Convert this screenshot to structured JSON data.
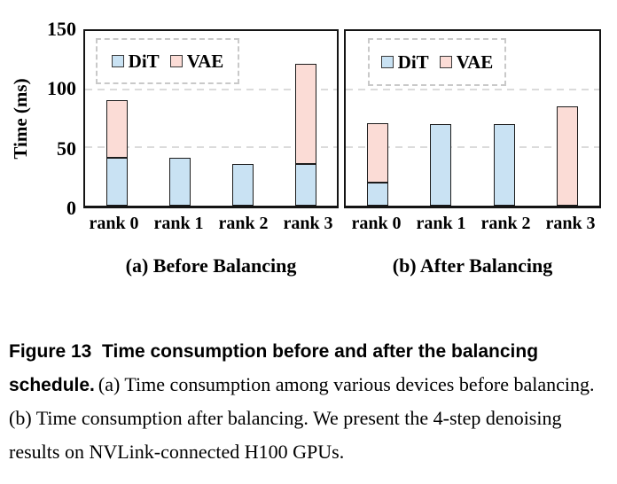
{
  "chart_data": [
    {
      "type": "bar",
      "stacked": true,
      "title": "(a) Before Balancing",
      "categories": [
        "rank 0",
        "rank 1",
        "rank 2",
        "rank 3"
      ],
      "series": [
        {
          "name": "DiT",
          "color": "#C9E2F3",
          "values": [
            41,
            41,
            36,
            36
          ]
        },
        {
          "name": "VAE",
          "color": "#FBDCD6",
          "values": [
            50,
            0,
            0,
            86
          ]
        }
      ],
      "xlabel": "",
      "ylabel": "Time (ms)",
      "ylim": [
        0,
        150
      ],
      "yticks": [
        0,
        50,
        100,
        150
      ],
      "grid": "horizontal-dashed",
      "legend_position": "top-left"
    },
    {
      "type": "bar",
      "stacked": true,
      "title": "(b) After Balancing",
      "categories": [
        "rank 0",
        "rank 1",
        "rank 2",
        "rank 3"
      ],
      "series": [
        {
          "name": "DiT",
          "color": "#C9E2F3",
          "values": [
            20,
            70,
            70,
            0
          ]
        },
        {
          "name": "VAE",
          "color": "#FBDCD6",
          "values": [
            51,
            0,
            0,
            85
          ]
        }
      ],
      "xlabel": "",
      "ylabel": "",
      "ylim": [
        0,
        150
      ],
      "yticks": [
        0,
        50,
        100,
        150
      ],
      "grid": "horizontal-dashed",
      "legend_position": "top-left"
    }
  ],
  "caption": {
    "bold": "Figure 13  Time consumption before and after the balancing schedule.",
    "body": "(a) Time consumption among various devices before balancing. (b) Time consumption after balancing. We present the 4-step denoising results on NVLink-connected H100 GPUs."
  },
  "colors": {
    "dit_fill": "#C9E2F3",
    "vae_fill": "#FBDCD6",
    "bar_border": "#1c1c1c",
    "axis": "#141414",
    "gridline": "#dbdbdb",
    "legend_border": "#c9c9c9",
    "text": "#000000"
  }
}
